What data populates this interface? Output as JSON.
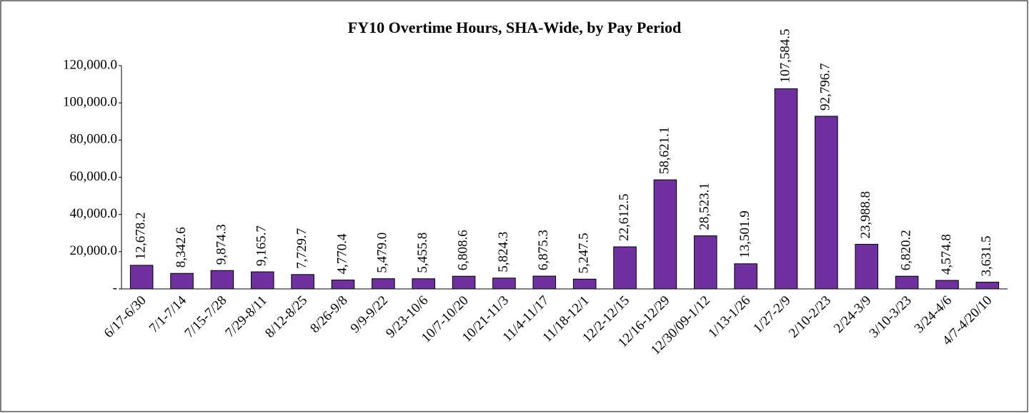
{
  "chart_data": {
    "type": "bar",
    "title": "FY10 Overtime Hours, SHA-Wide, by Pay Period",
    "categories": [
      "6/17-6/30",
      "7/1-7/14",
      "7/15-7/28",
      "7/29-8/11",
      "8/12-8/25",
      "8/26-9/8",
      "9/9-9/22",
      "9/23-10/6",
      "10/7-10/20",
      "10/21-11/3",
      "11/4-11/17",
      "11/18-12/1",
      "12/2-12/15",
      "12/16-12/29",
      "12/30/09-1/12",
      "1/13-1/26",
      "1/27-2/9",
      "2/10-2/23",
      "2/24-3/9",
      "3/10-3/23",
      "3/24-4/6",
      "4/7-4/20/10"
    ],
    "values": [
      12678.2,
      8342.6,
      9874.3,
      9165.7,
      7729.7,
      4770.4,
      5479.0,
      5455.8,
      6808.6,
      5824.3,
      6875.3,
      5247.5,
      22612.5,
      58621.1,
      28523.1,
      13501.9,
      107584.5,
      92796.7,
      23988.8,
      6820.2,
      4574.8,
      3631.5
    ],
    "value_labels": [
      "12,678.2",
      "8,342.6",
      "9,874.3",
      "9,165.7",
      "7,729.7",
      "4,770.4",
      "5,479.0",
      "5,455.8",
      "6,808.6",
      "5,824.3",
      "6,875.3",
      "5,247.5",
      "22,612.5",
      "58,621.1",
      "28,523.1",
      "13,501.9",
      "107,584.5",
      "92,796.7",
      "23,988.8",
      "6,820.2",
      "4,574.8",
      "3,631.5"
    ],
    "color": "#7030a0",
    "ylim": [
      0,
      120000
    ],
    "yticks": [
      {
        "value": 0,
        "label": "-"
      },
      {
        "value": 20000,
        "label": "20,000.0"
      },
      {
        "value": 40000,
        "label": "40,000.0"
      },
      {
        "value": 60000,
        "label": "60,000.0"
      },
      {
        "value": 80000,
        "label": "80,000.0"
      },
      {
        "value": 100000,
        "label": "100,000.0"
      },
      {
        "value": 120000,
        "label": "120,000.0"
      }
    ],
    "grid": false
  }
}
